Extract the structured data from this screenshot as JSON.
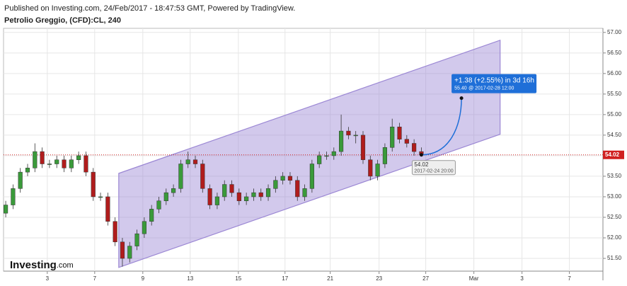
{
  "chart_data": {
    "type": "candlestick",
    "header": "Published on Investing.com, 24/Feb/2017 - 18:47:53 GMT, Powered by TradingView.",
    "title": "Petrolio Greggio, (CFD):CL, 240",
    "logo": "Investing",
    "logo_suffix": ".com",
    "up_color": "#3a9a3a",
    "down_color": "#b01c1c",
    "open": [
      52.6,
      52.8,
      53.2,
      53.6,
      53.7,
      54.1,
      53.8,
      53.8,
      53.9,
      53.7,
      53.9,
      54.0,
      53.6,
      53.0,
      53.0,
      52.4,
      51.9,
      51.5,
      51.8,
      52.1,
      52.4,
      52.7,
      52.9,
      53.1,
      53.2,
      53.8,
      53.9,
      53.8,
      53.2,
      52.8,
      53.0,
      53.3,
      53.1,
      52.9,
      53.0,
      53.1,
      53.0,
      53.2,
      53.4,
      53.5,
      53.4,
      53.0,
      53.2,
      53.8,
      54.0,
      54.0,
      54.1,
      54.6,
      54.5,
      54.5,
      53.9,
      53.5,
      53.8,
      54.2,
      54.7,
      54.4,
      54.3,
      54.1
    ],
    "high": [
      52.9,
      53.3,
      53.7,
      53.8,
      54.3,
      54.2,
      53.9,
      54.0,
      54.0,
      54.0,
      54.1,
      54.1,
      53.7,
      53.1,
      53.1,
      52.5,
      52.0,
      51.9,
      52.2,
      52.5,
      52.8,
      53.0,
      53.2,
      53.3,
      53.9,
      54.1,
      54.0,
      53.9,
      53.3,
      53.1,
      53.4,
      53.4,
      53.2,
      53.1,
      53.2,
      53.2,
      53.3,
      53.5,
      53.6,
      53.6,
      53.5,
      53.3,
      53.9,
      54.1,
      54.1,
      54.2,
      55.0,
      54.7,
      54.6,
      54.6,
      54.0,
      53.9,
      54.3,
      54.9,
      54.8,
      54.5,
      54.4,
      54.2
    ],
    "low": [
      52.5,
      52.7,
      53.1,
      53.5,
      53.6,
      53.7,
      53.7,
      53.7,
      53.6,
      53.6,
      53.8,
      53.5,
      52.9,
      52.9,
      52.3,
      51.8,
      51.3,
      51.4,
      51.7,
      52.0,
      52.3,
      52.6,
      52.8,
      53.0,
      53.1,
      53.7,
      53.7,
      53.1,
      52.7,
      52.7,
      52.9,
      53.0,
      52.8,
      52.8,
      52.9,
      52.9,
      52.9,
      53.1,
      53.3,
      53.3,
      52.9,
      52.9,
      53.1,
      53.7,
      53.9,
      53.9,
      54.0,
      54.4,
      54.3,
      53.8,
      53.4,
      53.4,
      53.7,
      54.1,
      54.3,
      54.2,
      54.0,
      54.0
    ],
    "close": [
      52.8,
      53.2,
      53.6,
      53.7,
      54.1,
      53.8,
      53.8,
      53.9,
      53.7,
      53.9,
      54.0,
      53.6,
      53.0,
      53.0,
      52.4,
      51.9,
      51.5,
      51.8,
      52.1,
      52.4,
      52.7,
      52.9,
      53.1,
      53.2,
      53.8,
      53.9,
      53.8,
      53.2,
      52.8,
      53.0,
      53.3,
      53.1,
      52.9,
      53.0,
      53.1,
      53.0,
      53.2,
      53.4,
      53.5,
      53.4,
      53.0,
      53.2,
      53.8,
      54.0,
      54.0,
      54.1,
      54.6,
      54.5,
      54.5,
      53.9,
      53.5,
      53.8,
      54.2,
      54.7,
      54.4,
      54.3,
      54.1,
      54.02
    ],
    "xlim": [
      -0.3,
      81.9
    ],
    "xticks": [
      {
        "value": 5.7,
        "label": "3"
      },
      {
        "value": 12.2,
        "label": "7"
      },
      {
        "value": 18.8,
        "label": "9"
      },
      {
        "value": 25.3,
        "label": "13"
      },
      {
        "value": 31.9,
        "label": "15"
      },
      {
        "value": 38.3,
        "label": "17"
      },
      {
        "value": 44.5,
        "label": "21"
      },
      {
        "value": 51.2,
        "label": "23"
      },
      {
        "value": 57.6,
        "label": "27"
      },
      {
        "value": 64.2,
        "label": "Mar"
      },
      {
        "value": 70.8,
        "label": "3"
      },
      {
        "value": 77.3,
        "label": "7"
      }
    ],
    "ylim": [
      51.19,
      57.1
    ],
    "yticks": [
      {
        "value": 51.5,
        "label": "51.50"
      },
      {
        "value": 52,
        "label": "52.00"
      },
      {
        "value": 52.5,
        "label": "52.50"
      },
      {
        "value": 53,
        "label": "53.00"
      },
      {
        "value": 53.5,
        "label": "53.50"
      },
      {
        "value": 54,
        "label": "54.00"
      },
      {
        "value": 54.5,
        "label": "54.50"
      },
      {
        "value": 55,
        "label": "55.00"
      },
      {
        "value": 55.5,
        "label": "55.50"
      },
      {
        "value": 56,
        "label": "56.00"
      },
      {
        "value": 56.5,
        "label": "56.50"
      },
      {
        "value": 57,
        "label": "57.00"
      }
    ],
    "grid": true,
    "last_price": 54.02,
    "last_price_label": "54.02",
    "last_price_time": "2017-02-24 20:00",
    "channel": {
      "color": "#9b87d4",
      "x": [
        15.5,
        67.8,
        67.8,
        15.5
      ],
      "y": [
        53.57,
        56.81,
        54.52,
        51.28
      ]
    },
    "projection": {
      "color": "#1f6fd8",
      "x": [
        57,
        62.5
      ],
      "y": [
        54.02,
        55.4
      ],
      "label": "+1.38 (+2.55%) in 3d 16h",
      "price_label": "55.40",
      "time_label": "@ 2017-02-28  12:00"
    }
  }
}
